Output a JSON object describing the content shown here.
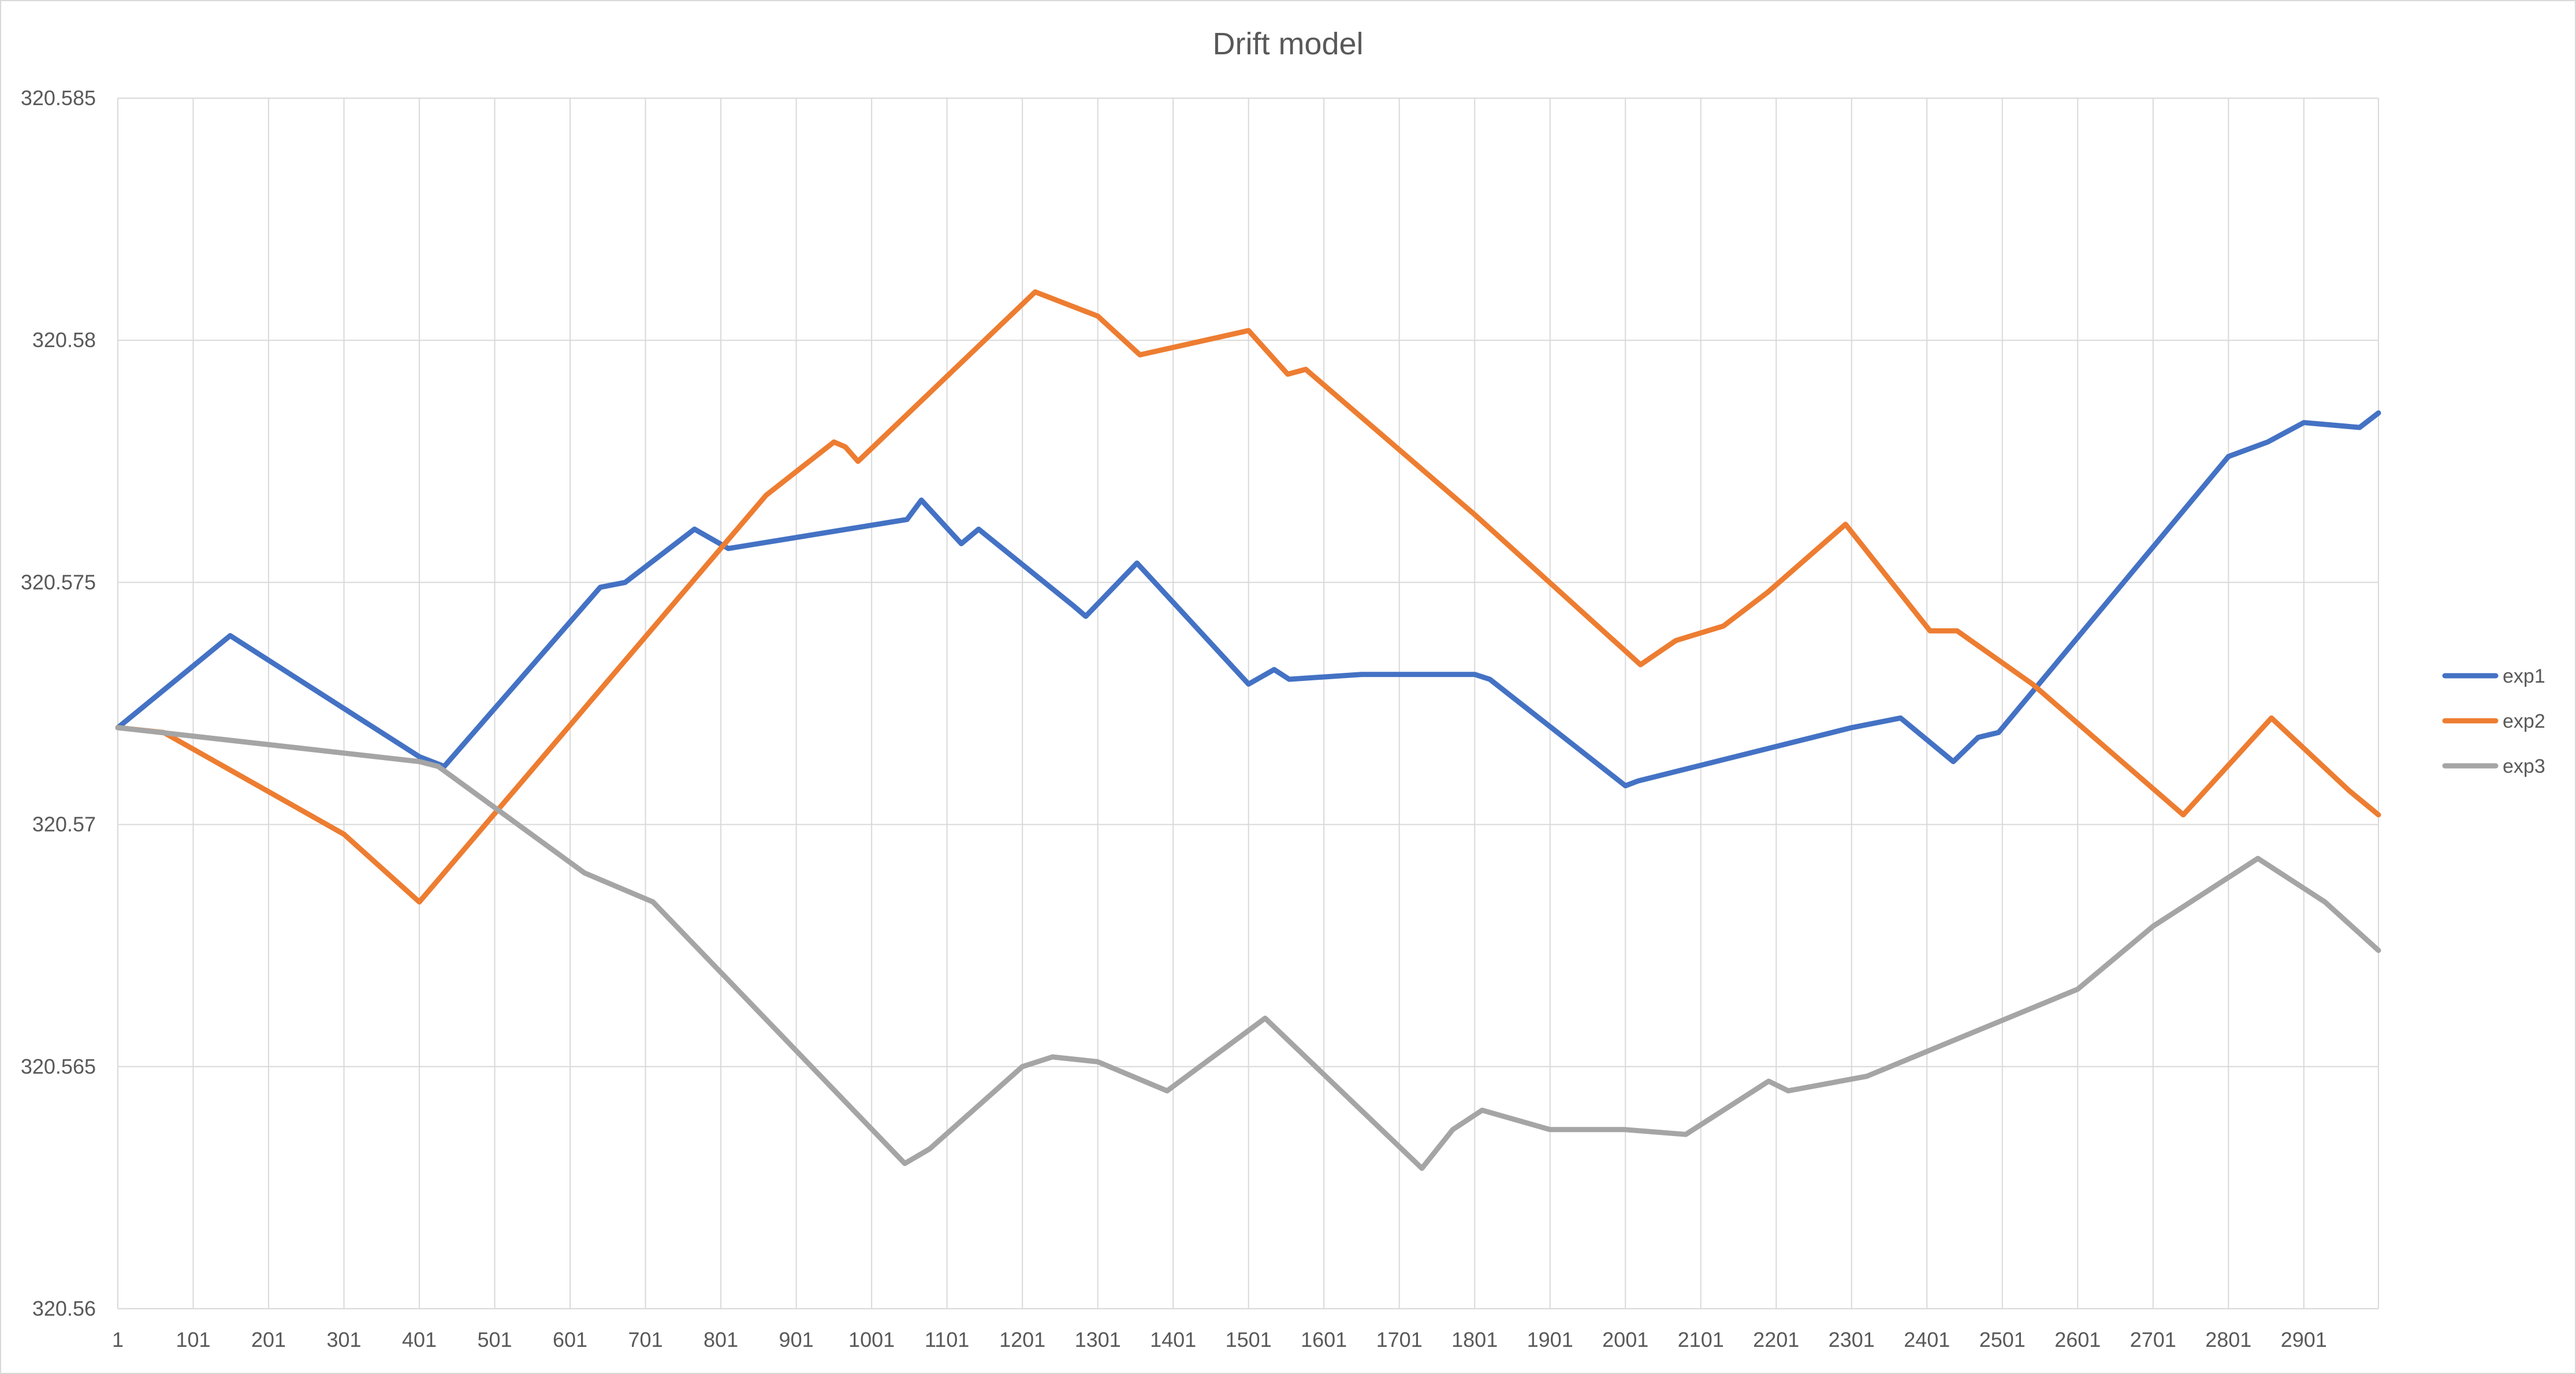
{
  "chart_data": {
    "type": "line",
    "title": "Drift model",
    "xlabel": "",
    "ylabel": "",
    "x_ticks": [
      "1",
      "101",
      "201",
      "301",
      "401",
      "501",
      "601",
      "701",
      "801",
      "901",
      "1001",
      "1101",
      "1201",
      "1301",
      "1401",
      "1501",
      "1601",
      "1701",
      "1801",
      "1901",
      "2001",
      "2101",
      "2201",
      "2301",
      "2401",
      "2501",
      "2601",
      "2701",
      "2801",
      "2901"
    ],
    "y_ticks": [
      "320.56",
      "320.565",
      "320.57",
      "320.575",
      "320.58",
      "320.585"
    ],
    "xlim": [
      1,
      3000
    ],
    "ylim": [
      320.56,
      320.585
    ],
    "grid": true,
    "legend_position": "right",
    "series": [
      {
        "name": "exp1",
        "color": "#4472C4",
        "points": [
          [
            1,
            320.572
          ],
          [
            150,
            320.5739
          ],
          [
            401,
            320.5714
          ],
          [
            434,
            320.5712
          ],
          [
            641,
            320.5749
          ],
          [
            674,
            320.575
          ],
          [
            766,
            320.5761
          ],
          [
            811,
            320.5757
          ],
          [
            1048,
            320.5763
          ],
          [
            1067,
            320.5767
          ],
          [
            1120,
            320.5758
          ],
          [
            1143,
            320.5761
          ],
          [
            1270,
            320.5745
          ],
          [
            1285,
            320.5743
          ],
          [
            1353,
            320.5754
          ],
          [
            1501,
            320.5729
          ],
          [
            1535,
            320.5732
          ],
          [
            1555,
            320.573
          ],
          [
            1651,
            320.5731
          ],
          [
            1801,
            320.5731
          ],
          [
            1821,
            320.573
          ],
          [
            2001,
            320.5708
          ],
          [
            2018,
            320.5709
          ],
          [
            2301,
            320.572
          ],
          [
            2366,
            320.5722
          ],
          [
            2436,
            320.5713
          ],
          [
            2469,
            320.5718
          ],
          [
            2496,
            320.5719
          ],
          [
            2801,
            320.5776
          ],
          [
            2853,
            320.5779
          ],
          [
            2901,
            320.5783
          ],
          [
            2975,
            320.5782
          ],
          [
            3000,
            320.5785
          ]
        ]
      },
      {
        "name": "exp2",
        "color": "#ED7D31",
        "points": [
          [
            1,
            320.572
          ],
          [
            62,
            320.5719
          ],
          [
            301,
            320.5698
          ],
          [
            401,
            320.5684
          ],
          [
            861,
            320.5768
          ],
          [
            951,
            320.5779
          ],
          [
            966,
            320.5778
          ],
          [
            983,
            320.5775
          ],
          [
            1218,
            320.581
          ],
          [
            1301,
            320.5805
          ],
          [
            1357,
            320.5797
          ],
          [
            1501,
            320.5802
          ],
          [
            1553,
            320.5793
          ],
          [
            1577,
            320.5794
          ],
          [
            1801,
            320.5764
          ],
          [
            2021,
            320.5733
          ],
          [
            2068,
            320.5738
          ],
          [
            2131,
            320.5741
          ],
          [
            2190,
            320.5748
          ],
          [
            2293,
            320.5762
          ],
          [
            2405,
            320.574
          ],
          [
            2441,
            320.574
          ],
          [
            2541,
            320.5729
          ],
          [
            2741,
            320.5702
          ],
          [
            2858,
            320.5722
          ],
          [
            2961,
            320.5707
          ],
          [
            3000,
            320.5702
          ]
        ]
      },
      {
        "name": "exp3",
        "color": "#A5A5A5",
        "points": [
          [
            1,
            320.572
          ],
          [
            401,
            320.5713
          ],
          [
            426,
            320.5712
          ],
          [
            620,
            320.569
          ],
          [
            711,
            320.5684
          ],
          [
            1045,
            320.563
          ],
          [
            1078,
            320.5633
          ],
          [
            1201,
            320.565
          ],
          [
            1241,
            320.5652
          ],
          [
            1301,
            320.5651
          ],
          [
            1393,
            320.5645
          ],
          [
            1523,
            320.566
          ],
          [
            1731,
            320.5629
          ],
          [
            1772,
            320.5637
          ],
          [
            1811,
            320.5641
          ],
          [
            1901,
            320.5637
          ],
          [
            2000,
            320.5637
          ],
          [
            2081,
            320.5636
          ],
          [
            2191,
            320.5647
          ],
          [
            2217,
            320.5645
          ],
          [
            2321,
            320.5648
          ],
          [
            2601,
            320.5666
          ],
          [
            2701,
            320.5679
          ],
          [
            2840,
            320.5693
          ],
          [
            2929,
            320.5684
          ],
          [
            3000,
            320.5674
          ]
        ]
      }
    ]
  }
}
